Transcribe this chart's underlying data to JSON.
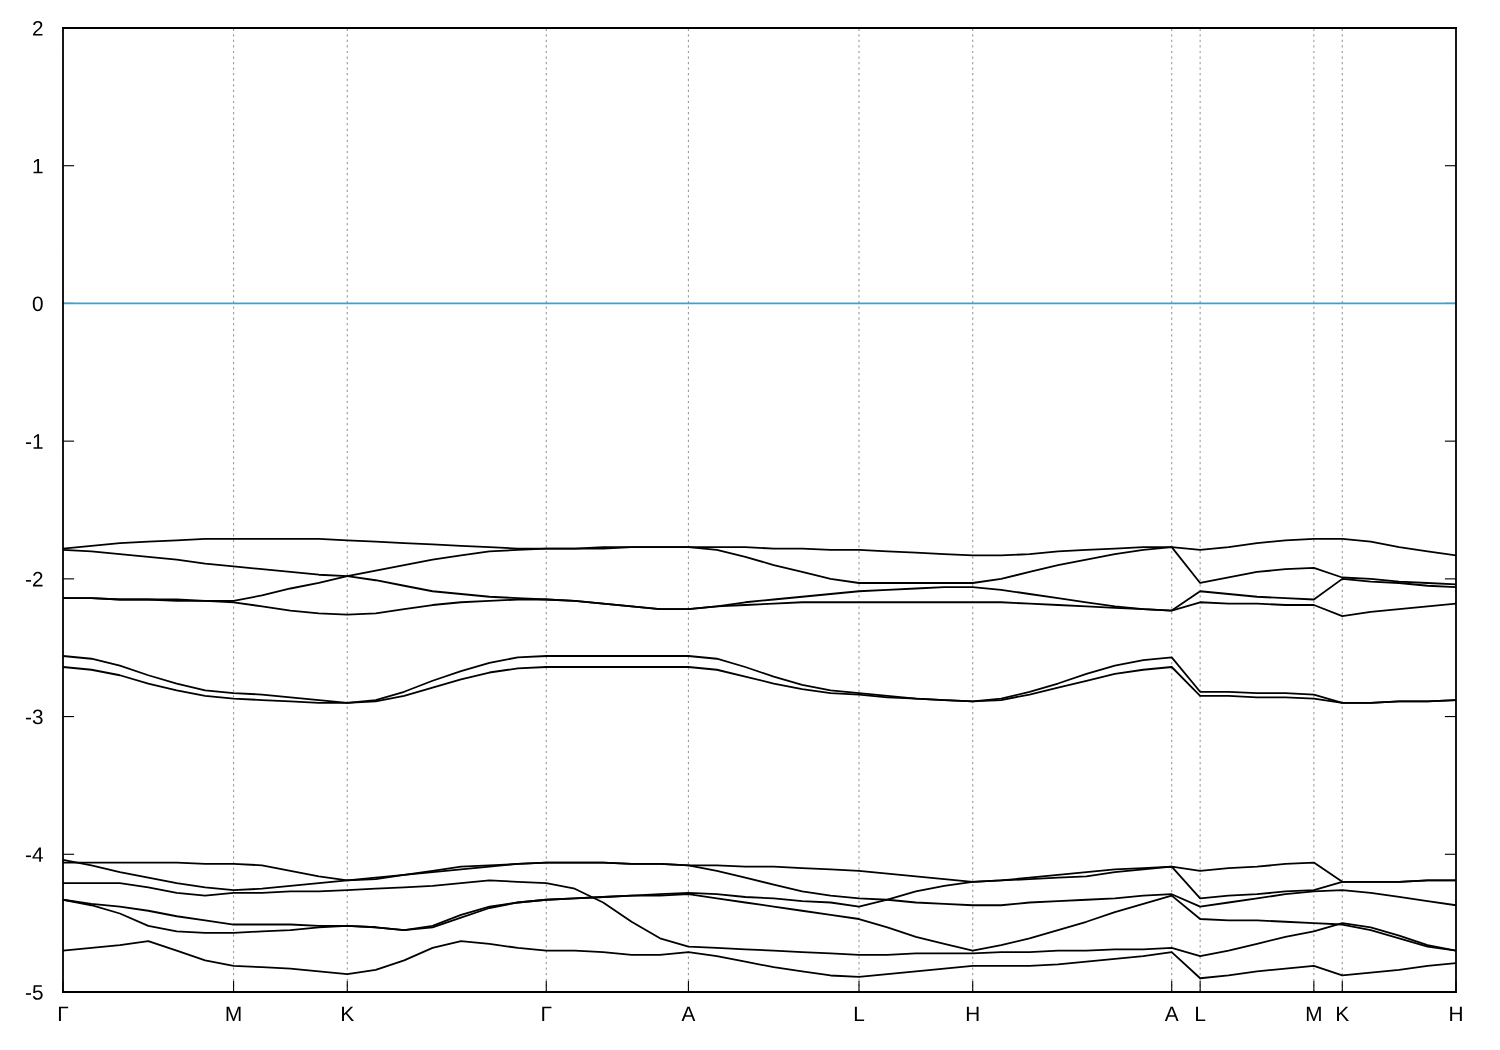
{
  "chart_data": {
    "type": "line",
    "categories": [
      "Γ",
      null,
      null,
      null,
      null,
      null,
      "M",
      null,
      null,
      null,
      "K",
      null,
      null,
      null,
      null,
      null,
      null,
      "Γ",
      null,
      null,
      null,
      null,
      "A",
      null,
      null,
      null,
      null,
      null,
      "L",
      null,
      null,
      null,
      "H",
      null,
      null,
      null,
      null,
      null,
      null,
      "A",
      "L",
      null,
      null,
      null,
      "M",
      "K",
      null,
      null,
      null,
      "H"
    ],
    "ylim": [
      -5,
      2
    ],
    "yticks": [
      -5,
      -4,
      -3,
      -2,
      -1,
      0,
      1,
      2
    ],
    "grid": "x",
    "line_style": "solid",
    "marker": "none",
    "ref_lines": [
      {
        "axis": "y",
        "value": 0,
        "color": "#3aa0d8"
      }
    ],
    "series": [
      {
        "color": "#000000",
        "values": [
          -1.78,
          -1.76,
          -1.74,
          -1.73,
          -1.72,
          -1.71,
          -1.71,
          -1.71,
          -1.71,
          -1.71,
          -1.72,
          -1.73,
          -1.74,
          -1.75,
          -1.76,
          -1.77,
          -1.78,
          -1.78,
          -1.78,
          -1.77,
          -1.77,
          -1.77,
          -1.77,
          -1.77,
          -1.77,
          -1.78,
          -1.78,
          -1.79,
          -1.79,
          -1.8,
          -1.81,
          -1.82,
          -1.83,
          -1.83,
          -1.82,
          -1.8,
          -1.79,
          -1.78,
          -1.77,
          -1.77,
          -1.79,
          -1.77,
          -1.74,
          -1.72,
          -1.71,
          -1.71,
          -1.73,
          -1.77,
          -1.8,
          -1.83
        ]
      },
      {
        "color": "#000000",
        "values": [
          -1.79,
          -1.8,
          -1.82,
          -1.84,
          -1.86,
          -1.89,
          -1.91,
          -1.93,
          -1.95,
          -1.97,
          -1.98,
          -2.01,
          -2.05,
          -2.09,
          -2.11,
          -2.13,
          -2.14,
          -2.15,
          -2.16,
          -2.18,
          -2.2,
          -2.22,
          -2.22,
          -2.2,
          -2.17,
          -2.15,
          -2.13,
          -2.11,
          -2.09,
          -2.08,
          -2.07,
          -2.06,
          -2.06,
          -2.08,
          -2.11,
          -2.14,
          -2.17,
          -2.2,
          -2.22,
          -2.23,
          -2.09,
          -2.11,
          -2.13,
          -2.14,
          -2.15,
          -2.0,
          -2.02,
          -2.03,
          -2.05,
          -2.06
        ]
      },
      {
        "color": "#000000",
        "values": [
          -2.14,
          -2.14,
          -2.15,
          -2.15,
          -2.15,
          -2.16,
          -2.16,
          -2.12,
          -2.07,
          -2.03,
          -1.98,
          -1.94,
          -1.9,
          -1.86,
          -1.83,
          -1.8,
          -1.79,
          -1.78,
          -1.78,
          -1.78,
          -1.77,
          -1.77,
          -1.77,
          -1.79,
          -1.84,
          -1.9,
          -1.95,
          -2.0,
          -2.03,
          -2.03,
          -2.03,
          -2.03,
          -2.03,
          -2.0,
          -1.95,
          -1.9,
          -1.86,
          -1.82,
          -1.79,
          -1.77,
          -2.03,
          -1.99,
          -1.95,
          -1.93,
          -1.92,
          -1.99,
          -2.0,
          -2.02,
          -2.03,
          -2.04
        ]
      },
      {
        "color": "#000000",
        "values": [
          -2.14,
          -2.14,
          -2.15,
          -2.15,
          -2.16,
          -2.16,
          -2.17,
          -2.2,
          -2.23,
          -2.25,
          -2.26,
          -2.25,
          -2.22,
          -2.19,
          -2.17,
          -2.16,
          -2.15,
          -2.15,
          -2.16,
          -2.18,
          -2.2,
          -2.22,
          -2.22,
          -2.2,
          -2.19,
          -2.18,
          -2.17,
          -2.17,
          -2.17,
          -2.17,
          -2.17,
          -2.17,
          -2.17,
          -2.17,
          -2.18,
          -2.19,
          -2.2,
          -2.21,
          -2.22,
          -2.23,
          -2.17,
          -2.18,
          -2.18,
          -2.19,
          -2.19,
          -2.27,
          -2.24,
          -2.22,
          -2.2,
          -2.18
        ]
      },
      {
        "color": "#000000",
        "values": [
          -2.56,
          -2.58,
          -2.63,
          -2.7,
          -2.76,
          -2.81,
          -2.83,
          -2.84,
          -2.86,
          -2.88,
          -2.9,
          -2.88,
          -2.82,
          -2.74,
          -2.67,
          -2.61,
          -2.57,
          -2.56,
          -2.56,
          -2.56,
          -2.56,
          -2.56,
          -2.56,
          -2.58,
          -2.64,
          -2.71,
          -2.77,
          -2.81,
          -2.83,
          -2.85,
          -2.87,
          -2.88,
          -2.89,
          -2.87,
          -2.82,
          -2.76,
          -2.69,
          -2.63,
          -2.59,
          -2.57,
          -2.82,
          -2.82,
          -2.83,
          -2.83,
          -2.84,
          -2.9,
          -2.9,
          -2.89,
          -2.89,
          -2.88
        ]
      },
      {
        "color": "#000000",
        "values": [
          -2.64,
          -2.66,
          -2.7,
          -2.76,
          -2.81,
          -2.85,
          -2.87,
          -2.88,
          -2.89,
          -2.9,
          -2.9,
          -2.89,
          -2.85,
          -2.79,
          -2.73,
          -2.68,
          -2.65,
          -2.64,
          -2.64,
          -2.64,
          -2.64,
          -2.64,
          -2.64,
          -2.66,
          -2.71,
          -2.76,
          -2.8,
          -2.83,
          -2.84,
          -2.86,
          -2.87,
          -2.88,
          -2.89,
          -2.88,
          -2.84,
          -2.79,
          -2.74,
          -2.69,
          -2.66,
          -2.64,
          -2.85,
          -2.85,
          -2.86,
          -2.86,
          -2.87,
          -2.9,
          -2.9,
          -2.89,
          -2.89,
          -2.88
        ]
      },
      {
        "color": "#000000",
        "values": [
          -4.06,
          -4.06,
          -4.06,
          -4.06,
          -4.06,
          -4.07,
          -4.07,
          -4.08,
          -4.12,
          -4.16,
          -4.19,
          -4.18,
          -4.15,
          -4.12,
          -4.09,
          -4.08,
          -4.07,
          -4.06,
          -4.06,
          -4.06,
          -4.07,
          -4.07,
          -4.08,
          -4.08,
          -4.09,
          -4.09,
          -4.1,
          -4.11,
          -4.12,
          -4.14,
          -4.16,
          -4.18,
          -4.2,
          -4.19,
          -4.17,
          -4.15,
          -4.13,
          -4.11,
          -4.1,
          -4.09,
          -4.12,
          -4.1,
          -4.09,
          -4.07,
          -4.06,
          -4.2,
          -4.2,
          -4.2,
          -4.19,
          -4.19
        ]
      },
      {
        "color": "#000000",
        "values": [
          -4.04,
          -4.08,
          -4.13,
          -4.17,
          -4.21,
          -4.24,
          -4.26,
          -4.25,
          -4.23,
          -4.21,
          -4.19,
          -4.17,
          -4.15,
          -4.13,
          -4.11,
          -4.09,
          -4.07,
          -4.06,
          -4.06,
          -4.06,
          -4.07,
          -4.07,
          -4.08,
          -4.12,
          -4.17,
          -4.22,
          -4.27,
          -4.3,
          -4.32,
          -4.33,
          -4.35,
          -4.36,
          -4.37,
          -4.37,
          -4.35,
          -4.34,
          -4.33,
          -4.32,
          -4.3,
          -4.29,
          -4.38,
          -4.35,
          -4.32,
          -4.29,
          -4.27,
          -4.26,
          -4.28,
          -4.31,
          -4.34,
          -4.37
        ]
      },
      {
        "color": "#000000",
        "values": [
          -4.33,
          -4.36,
          -4.38,
          -4.41,
          -4.45,
          -4.48,
          -4.51,
          -4.51,
          -4.51,
          -4.52,
          -4.52,
          -4.53,
          -4.55,
          -4.52,
          -4.44,
          -4.38,
          -4.35,
          -4.33,
          -4.32,
          -4.31,
          -4.3,
          -4.29,
          -4.28,
          -4.29,
          -4.31,
          -4.32,
          -4.34,
          -4.35,
          -4.38,
          -4.33,
          -4.27,
          -4.23,
          -4.2,
          -4.19,
          -4.18,
          -4.17,
          -4.16,
          -4.13,
          -4.11,
          -4.09,
          -4.32,
          -4.3,
          -4.29,
          -4.27,
          -4.26,
          -4.2,
          -4.2,
          -4.2,
          -4.19,
          -4.19
        ]
      },
      {
        "color": "#000000",
        "values": [
          -4.33,
          -4.37,
          -4.43,
          -4.52,
          -4.56,
          -4.57,
          -4.57,
          -4.56,
          -4.55,
          -4.53,
          -4.52,
          -4.53,
          -4.55,
          -4.53,
          -4.46,
          -4.39,
          -4.35,
          -4.33,
          -4.32,
          -4.31,
          -4.3,
          -4.3,
          -4.29,
          -4.32,
          -4.35,
          -4.38,
          -4.41,
          -4.44,
          -4.47,
          -4.53,
          -4.6,
          -4.65,
          -4.7,
          -4.66,
          -4.61,
          -4.55,
          -4.49,
          -4.42,
          -4.36,
          -4.3,
          -4.47,
          -4.48,
          -4.48,
          -4.49,
          -4.5,
          -4.51,
          -4.55,
          -4.61,
          -4.67,
          -4.7
        ]
      },
      {
        "color": "#000000",
        "values": [
          -4.21,
          -4.21,
          -4.21,
          -4.24,
          -4.28,
          -4.3,
          -4.28,
          -4.28,
          -4.27,
          -4.27,
          -4.26,
          -4.25,
          -4.24,
          -4.23,
          -4.21,
          -4.19,
          -4.2,
          -4.21,
          -4.25,
          -4.35,
          -4.49,
          -4.61,
          -4.67,
          -4.68,
          -4.69,
          -4.7,
          -4.71,
          -4.72,
          -4.73,
          -4.73,
          -4.72,
          -4.72,
          -4.72,
          -4.71,
          -4.71,
          -4.7,
          -4.7,
          -4.69,
          -4.69,
          -4.68,
          -4.74,
          -4.7,
          -4.65,
          -4.6,
          -4.56,
          -4.5,
          -4.53,
          -4.59,
          -4.66,
          -4.7
        ]
      },
      {
        "color": "#000000",
        "values": [
          -4.7,
          -4.68,
          -4.66,
          -4.63,
          -4.7,
          -4.77,
          -4.81,
          -4.82,
          -4.83,
          -4.85,
          -4.87,
          -4.84,
          -4.77,
          -4.68,
          -4.63,
          -4.65,
          -4.68,
          -4.7,
          -4.7,
          -4.71,
          -4.73,
          -4.73,
          -4.71,
          -4.74,
          -4.78,
          -4.82,
          -4.85,
          -4.88,
          -4.89,
          -4.87,
          -4.85,
          -4.83,
          -4.81,
          -4.81,
          -4.81,
          -4.8,
          -4.78,
          -4.76,
          -4.74,
          -4.71,
          -4.9,
          -4.88,
          -4.85,
          -4.83,
          -4.81,
          -4.88,
          -4.86,
          -4.84,
          -4.81,
          -4.79
        ]
      }
    ]
  }
}
